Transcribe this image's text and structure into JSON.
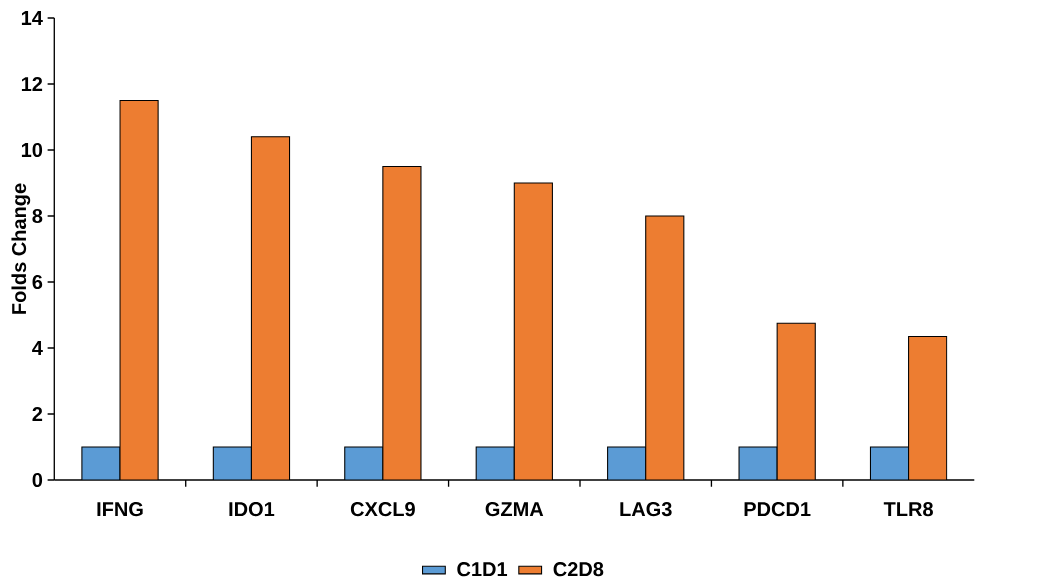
{
  "chart_data": {
    "type": "bar",
    "ylabel": "Folds Change",
    "categories": [
      "IFNG",
      "IDO1",
      "CXCL9",
      "GZMA",
      "LAG3",
      "PDCD1",
      "TLR8"
    ],
    "series": [
      {
        "name": "C1D1",
        "color": "#5b9bd5",
        "values": [
          1,
          1,
          1,
          1,
          1,
          1,
          1
        ]
      },
      {
        "name": "C2D8",
        "color": "#ed7d31",
        "values": [
          11.5,
          10.4,
          9.5,
          9.0,
          8.0,
          4.75,
          4.35
        ]
      }
    ],
    "ylim": [
      0,
      14
    ],
    "yticks": [
      0,
      2,
      4,
      6,
      8,
      10,
      12,
      14
    ],
    "legend": "bottom"
  }
}
